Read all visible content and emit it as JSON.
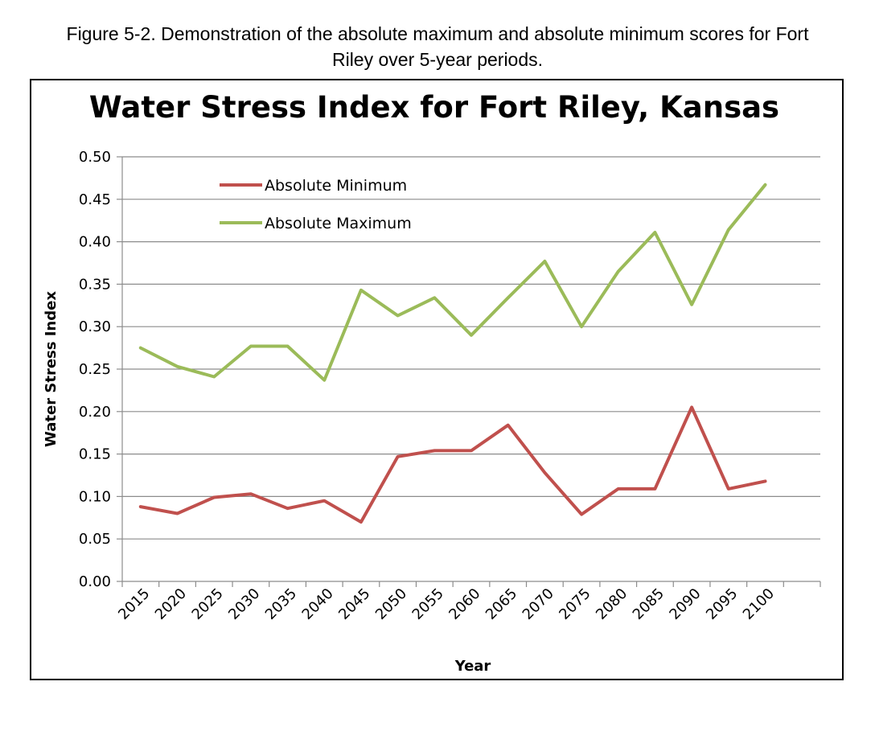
{
  "caption": {
    "line1": "Figure 5-2.  Demonstration of the absolute maximum and absolute minimum scores for Fort",
    "line2": "Riley over 5-year periods."
  },
  "chart_data": {
    "type": "line",
    "title": "Water Stress Index for Fort Riley, Kansas",
    "xlabel": "Year",
    "ylabel": "Water Stress Index",
    "categories": [
      "2015",
      "2020",
      "2025",
      "2030",
      "2035",
      "2040",
      "2045",
      "2050",
      "2055",
      "2060",
      "2065",
      "2070",
      "2075",
      "2080",
      "2085",
      "2090",
      "2095",
      "2100"
    ],
    "y_ticks": [
      "0.00",
      "0.05",
      "0.10",
      "0.15",
      "0.20",
      "0.25",
      "0.30",
      "0.35",
      "0.40",
      "0.45",
      "0.50"
    ],
    "ylim": [
      0,
      0.5
    ],
    "grid": "horizontal",
    "legend": "upper-left",
    "series": [
      {
        "name": "Absolute Minimum",
        "color": "#c0504d",
        "values": [
          0.088,
          0.08,
          0.099,
          0.103,
          0.086,
          0.095,
          0.07,
          0.147,
          0.154,
          0.154,
          0.184,
          0.128,
          0.079,
          0.109,
          0.109,
          0.205,
          0.109,
          0.118
        ]
      },
      {
        "name": "Absolute Maximum",
        "color": "#9bbb59",
        "values": [
          0.275,
          0.253,
          0.241,
          0.277,
          0.277,
          0.237,
          0.343,
          0.313,
          0.334,
          0.29,
          0.334,
          0.377,
          0.3,
          0.365,
          0.411,
          0.326,
          0.414,
          0.467
        ]
      }
    ]
  }
}
